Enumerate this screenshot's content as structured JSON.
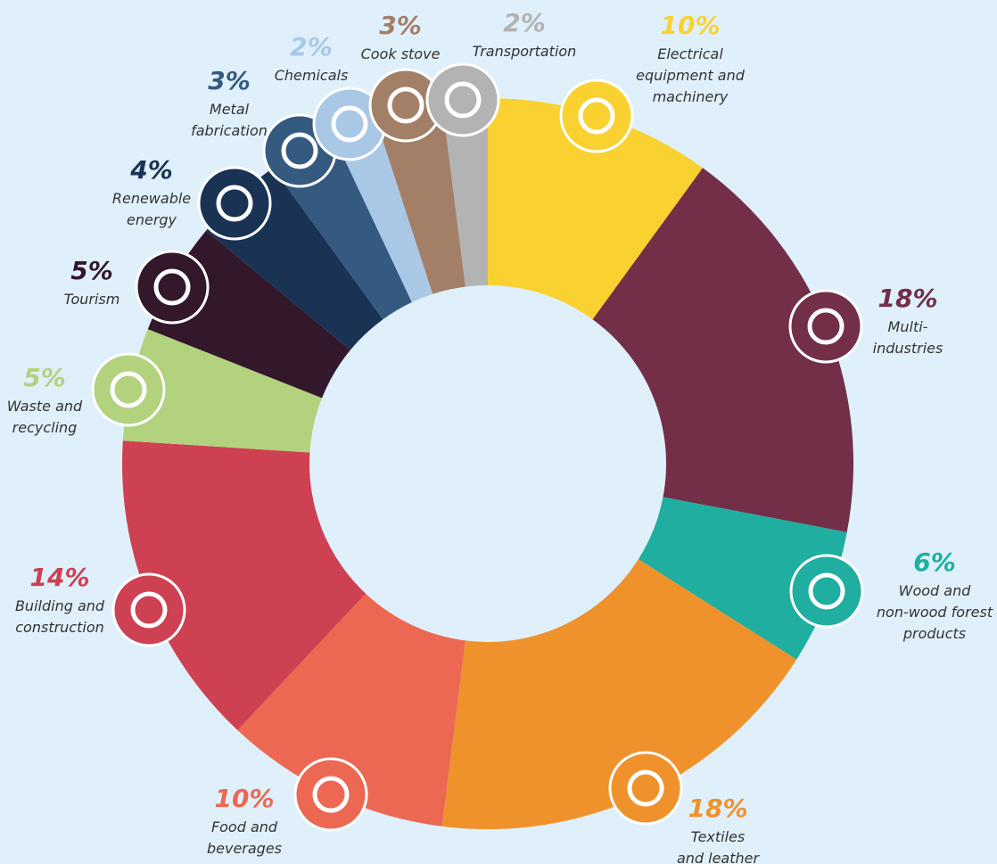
{
  "chart_data": {
    "type": "donut",
    "categories": [
      "Electrical\nequipment and\nmachinery",
      "Multi-\nindustries",
      "Wood and\nnon-wood forest\nproducts",
      "Textiles\nand leather",
      "Food and\nbeverages",
      "Building and\nconstruction",
      "Waste and\nrecycling",
      "Tourism",
      "Renewable\nenergy",
      "Metal\nfabrication",
      "Chemicals",
      "Cook stove",
      "Transportation"
    ],
    "values": [
      10,
      18,
      6,
      18,
      10,
      14,
      5,
      5,
      4,
      3,
      2,
      3,
      2
    ],
    "value_labels": [
      "10%",
      "18%",
      "6%",
      "18%",
      "10%",
      "14%",
      "5%",
      "5%",
      "4%",
      "3%",
      "2%",
      "3%",
      "2%"
    ],
    "colors": [
      "#f9d232",
      "#722f47",
      "#1fae9f",
      "#f0922b",
      "#ec6852",
      "#cd4152",
      "#b2d27e",
      "#33172b",
      "#1a3254",
      "#355a80",
      "#a9c8e6",
      "#a47f67",
      "#b3b3b3"
    ]
  }
}
